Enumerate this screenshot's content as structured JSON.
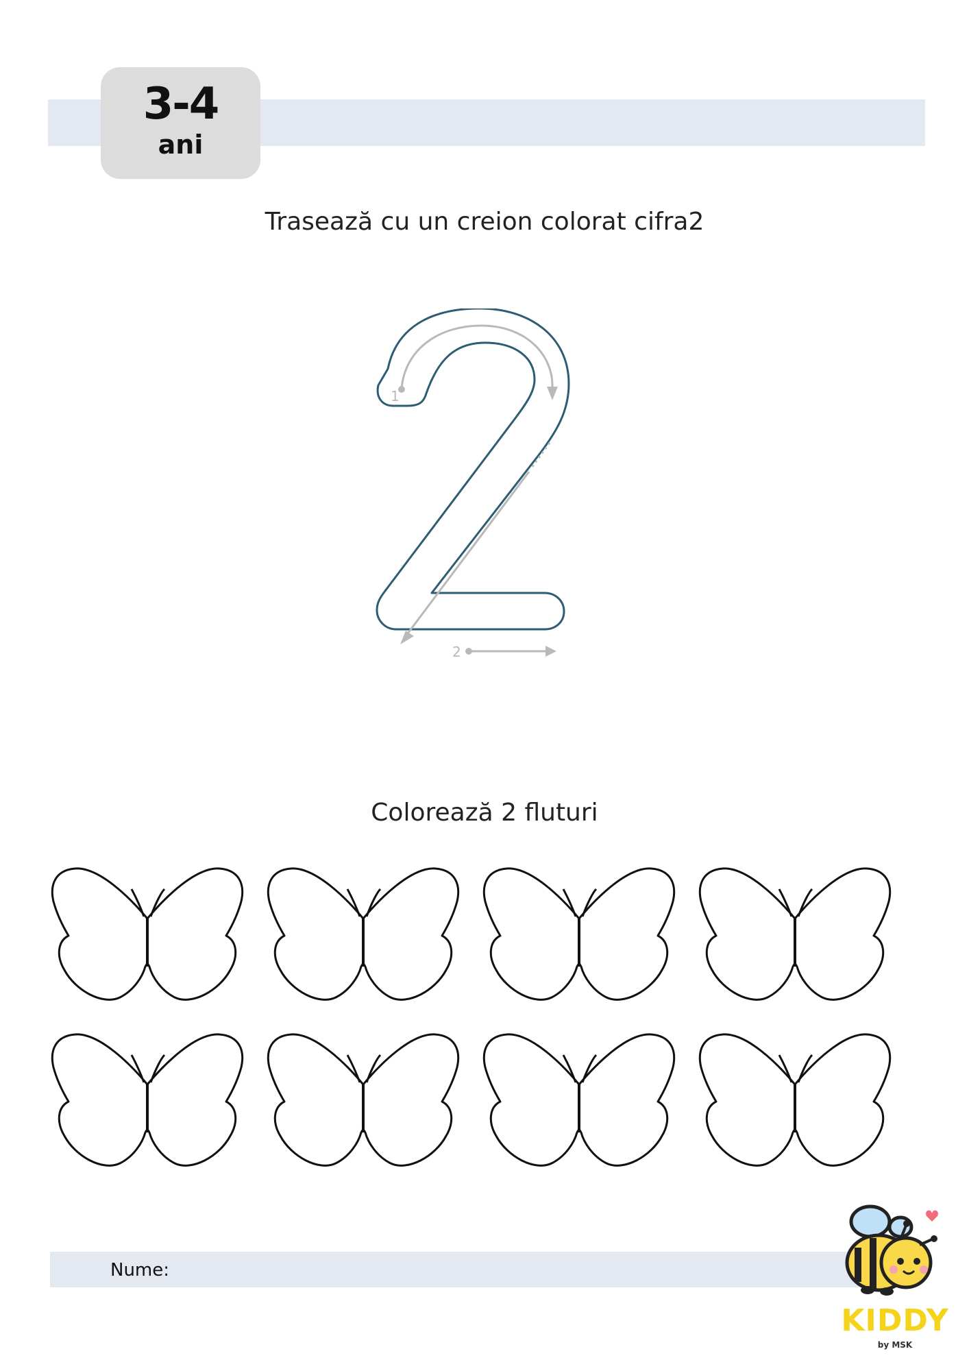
{
  "header": {
    "age_range": "3-4",
    "age_unit": "ani"
  },
  "task_trace": {
    "instruction": "Trasează cu un creion colorat cifra2",
    "digit": "2",
    "stroke_numbers": [
      "1",
      "2"
    ]
  },
  "task_color": {
    "instruction": "Colorează 2 fluturi",
    "butterfly_count": 8,
    "rows": 2,
    "columns": 4
  },
  "footer": {
    "name_label": "Nume:"
  },
  "logo": {
    "brand": "KIDDY",
    "sub": "by MSK",
    "icon": "bee-icon"
  },
  "colors": {
    "band": "#e4e8f1",
    "badge": "#dcdcdc",
    "digit_outline": "#2e5c73",
    "guide": "#b9b9b9",
    "brand_yellow": "#f5d31a"
  }
}
